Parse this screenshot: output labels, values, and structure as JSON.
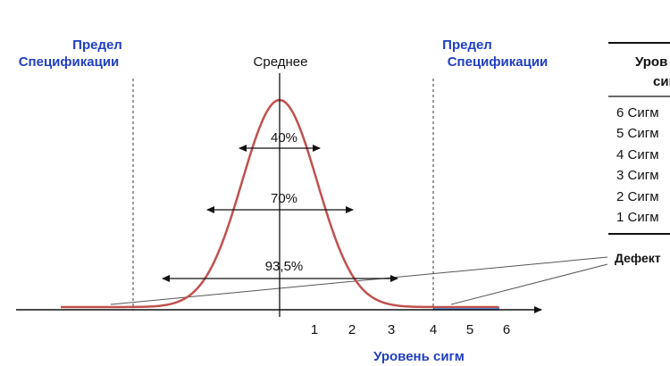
{
  "labels": {
    "spec_left_line1": "Предел",
    "spec_left_line2": "Спецификации",
    "spec_right_line1": "Предел",
    "spec_right_line2": "Спецификации",
    "mean": "Среднее",
    "pct_40": "40%",
    "pct_70": "70%",
    "pct_935": "93,5%",
    "x_axis_label": "Уровень сигм",
    "defects": "Дефект"
  },
  "axis": {
    "ticks": [
      "1",
      "2",
      "3",
      "4",
      "5",
      "6"
    ]
  },
  "table": {
    "header_line1": "Уров",
    "header_line2": "сиг",
    "rows": [
      "6 Сигм",
      "5 Сигм",
      "4 Сигм",
      "3 Сигм",
      "2 Сигм",
      "1 Сигм"
    ]
  },
  "colors": {
    "curve": "#c0504d",
    "spec_text": "#1f3fbf",
    "tail_fill": "#3fa9f5",
    "tail_stroke": "#1f3fbf",
    "axis": "#111111"
  }
}
